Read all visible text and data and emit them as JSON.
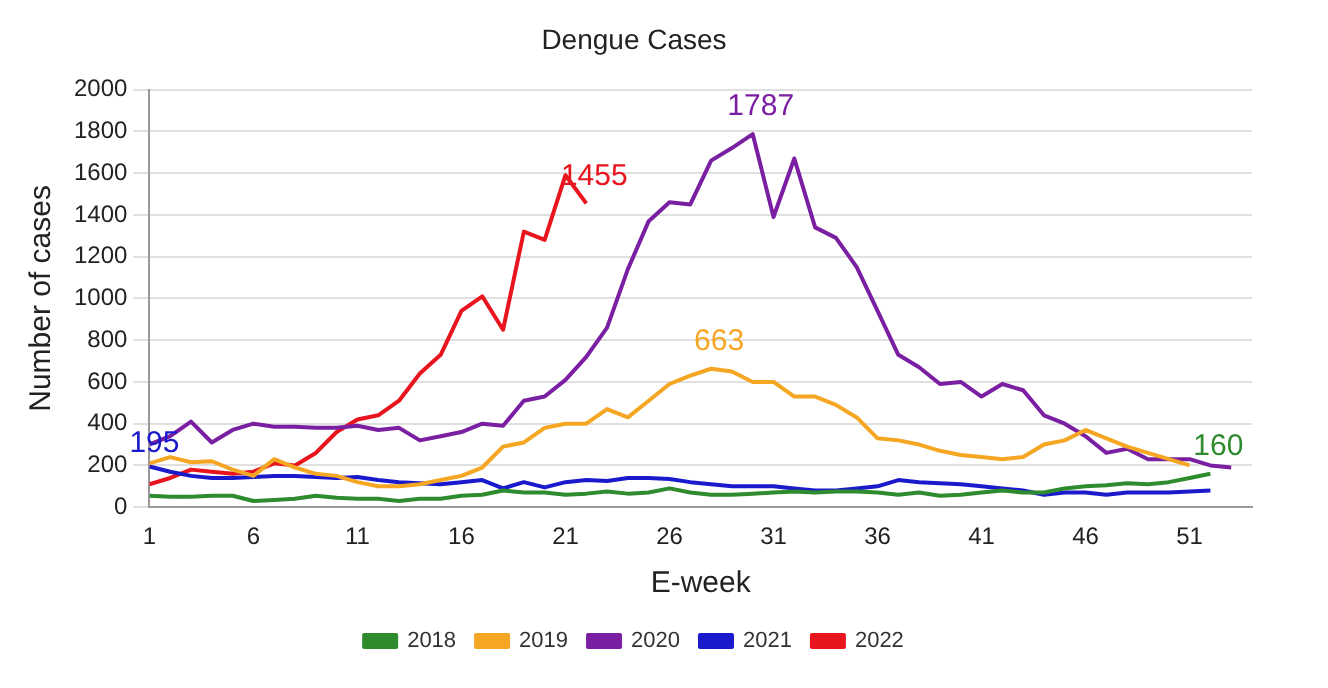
{
  "chart_data": {
    "type": "line",
    "title": "Dengue Cases",
    "xlabel": "E-week",
    "ylabel": "Number of cases",
    "x": [
      1,
      2,
      3,
      4,
      5,
      6,
      7,
      8,
      9,
      10,
      11,
      12,
      13,
      14,
      15,
      16,
      17,
      18,
      19,
      20,
      21,
      22,
      23,
      24,
      25,
      26,
      27,
      28,
      29,
      30,
      31,
      32,
      33,
      34,
      35,
      36,
      37,
      38,
      39,
      40,
      41,
      42,
      43,
      44,
      45,
      46,
      47,
      48,
      49,
      50,
      51,
      52,
      53
    ],
    "xlim": [
      1,
      54
    ],
    "xticks": [
      1,
      6,
      11,
      16,
      21,
      26,
      31,
      36,
      41,
      46,
      51
    ],
    "ylim": [
      0,
      2000
    ],
    "yticks": [
      0,
      200,
      400,
      600,
      800,
      1000,
      1200,
      1400,
      1600,
      1800,
      2000
    ],
    "grid": "y",
    "legend": "bottom",
    "marker": "none",
    "line_style": "solid",
    "series": [
      {
        "name": "2018",
        "color": "#2e8b2e",
        "values": [
          55,
          50,
          50,
          55,
          55,
          30,
          35,
          40,
          55,
          45,
          40,
          40,
          30,
          40,
          40,
          55,
          60,
          80,
          70,
          70,
          60,
          65,
          75,
          65,
          70,
          90,
          70,
          60,
          60,
          65,
          70,
          75,
          70,
          75,
          75,
          70,
          60,
          70,
          55,
          60,
          70,
          80,
          70,
          70,
          90,
          100,
          105,
          115,
          110,
          120,
          140,
          160,
          null
        ]
      },
      {
        "name": "2019",
        "color": "#f5a623",
        "values": [
          210,
          240,
          215,
          220,
          180,
          150,
          230,
          190,
          160,
          150,
          120,
          100,
          100,
          110,
          130,
          150,
          190,
          290,
          310,
          380,
          400,
          400,
          470,
          430,
          510,
          590,
          630,
          663,
          650,
          600,
          600,
          530,
          530,
          490,
          430,
          330,
          320,
          300,
          270,
          250,
          240,
          230,
          240,
          300,
          320,
          370,
          330,
          290,
          260,
          230,
          200,
          null,
          null
        ]
      },
      {
        "name": "2020",
        "color": "#7b1fa2",
        "values": [
          300,
          340,
          410,
          310,
          370,
          400,
          385,
          385,
          380,
          380,
          390,
          370,
          380,
          320,
          340,
          360,
          400,
          390,
          510,
          530,
          610,
          720,
          860,
          1140,
          1370,
          1460,
          1450,
          1660,
          1720,
          1787,
          1390,
          1670,
          1340,
          1290,
          1150,
          940,
          730,
          670,
          590,
          600,
          530,
          590,
          560,
          440,
          400,
          340,
          260,
          280,
          230,
          230,
          230,
          200,
          190
        ]
      },
      {
        "name": "2021",
        "color": "#1a1acc",
        "values": [
          195,
          170,
          150,
          140,
          140,
          145,
          150,
          150,
          145,
          140,
          145,
          130,
          120,
          115,
          110,
          120,
          130,
          90,
          120,
          95,
          120,
          130,
          125,
          140,
          140,
          135,
          120,
          110,
          100,
          100,
          100,
          90,
          80,
          80,
          90,
          100,
          130,
          120,
          115,
          110,
          100,
          90,
          80,
          60,
          70,
          70,
          60,
          70,
          70,
          70,
          75,
          80,
          null
        ]
      },
      {
        "name": "2022",
        "color": "#e8141e",
        "values": [
          110,
          140,
          180,
          170,
          160,
          170,
          210,
          200,
          260,
          360,
          420,
          440,
          510,
          640,
          730,
          940,
          1010,
          850,
          1320,
          1280,
          1590,
          1455,
          null,
          null,
          null,
          null,
          null,
          null,
          null,
          null,
          null,
          null,
          null,
          null,
          null,
          null,
          null,
          null,
          null,
          null,
          null,
          null,
          null,
          null,
          null,
          null,
          null,
          null,
          null,
          null,
          null,
          null,
          null
        ]
      }
    ],
    "annotations": [
      {
        "text": "195",
        "x": 1,
        "y": 195
      },
      {
        "text": "1455",
        "x": 22,
        "y": 1455
      },
      {
        "text": "1787",
        "x": 30,
        "y": 1787
      },
      {
        "text": "663",
        "x": 28,
        "y": 663
      },
      {
        "text": "160",
        "x": 52,
        "y": 160
      }
    ]
  }
}
